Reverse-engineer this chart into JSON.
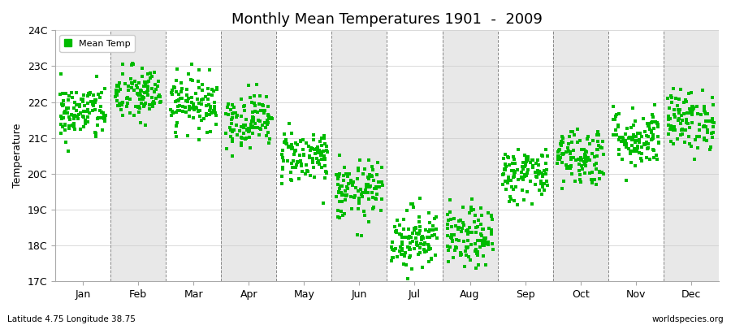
{
  "title": "Monthly Mean Temperatures 1901  -  2009",
  "ylabel": "Temperature",
  "footer_left": "Latitude 4.75 Longitude 38.75",
  "footer_right": "worldspecies.org",
  "ylim": [
    17.0,
    24.0
  ],
  "ytick_labels": [
    "17C",
    "18C",
    "19C",
    "20C",
    "21C",
    "22C",
    "23C",
    "24C"
  ],
  "ytick_values": [
    17,
    18,
    19,
    20,
    21,
    22,
    23,
    24
  ],
  "month_names": [
    "Jan",
    "Feb",
    "Mar",
    "Apr",
    "May",
    "Jun",
    "Jul",
    "Aug",
    "Sep",
    "Oct",
    "Nov",
    "Dec"
  ],
  "marker_color": "#00bb00",
  "marker": "s",
  "marker_size": 2.2,
  "legend_label": "Mean Temp",
  "background_color": "#ffffff",
  "band_color": "#e8e8e8",
  "n_years": 109,
  "monthly_means": [
    21.7,
    22.2,
    22.0,
    21.5,
    20.5,
    19.5,
    18.2,
    18.2,
    20.0,
    20.5,
    21.0,
    21.5
  ],
  "monthly_stds": [
    0.4,
    0.4,
    0.38,
    0.38,
    0.38,
    0.42,
    0.45,
    0.42,
    0.38,
    0.42,
    0.42,
    0.42
  ]
}
